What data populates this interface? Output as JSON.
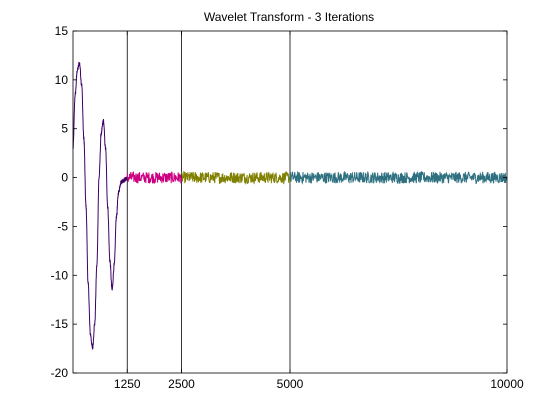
{
  "chart_data": {
    "type": "line",
    "title": "Wavelet Transform - 3 Iterations",
    "xlabel": "",
    "ylabel": "",
    "xlim": [
      0,
      10000
    ],
    "ylim": [
      -20,
      15
    ],
    "grid": false,
    "xticks": [
      1250,
      2500,
      5000,
      10000
    ],
    "yticks": [
      -20,
      -15,
      -10,
      -5,
      0,
      5,
      10,
      15
    ],
    "dividers": [
      1250,
      2500,
      5000
    ],
    "series": [
      {
        "color": "#3d0066",
        "kind": "approximation",
        "points": [
          [
            0,
            3
          ],
          [
            50,
            8.5
          ],
          [
            100,
            11
          ],
          [
            150,
            11.7
          ],
          [
            200,
            9.5
          ],
          [
            250,
            4
          ],
          [
            300,
            -3
          ],
          [
            350,
            -11
          ],
          [
            400,
            -16
          ],
          [
            450,
            -17.5
          ],
          [
            500,
            -15
          ],
          [
            550,
            -9
          ],
          [
            600,
            0
          ],
          [
            650,
            4.5
          ],
          [
            700,
            5.8
          ],
          [
            750,
            3
          ],
          [
            800,
            -3
          ],
          [
            850,
            -8.5
          ],
          [
            900,
            -11.5
          ],
          [
            950,
            -9
          ],
          [
            1000,
            -4
          ],
          [
            1050,
            -1.5
          ],
          [
            1100,
            -0.5
          ],
          [
            1150,
            -0.3
          ],
          [
            1200,
            -0.2
          ],
          [
            1250,
            0
          ]
        ]
      },
      {
        "color": "#cc0080",
        "kind": "noise",
        "x_range": [
          1250,
          2500
        ],
        "center": 0,
        "amplitude": 0.6
      },
      {
        "color": "#808000",
        "kind": "noise",
        "x_range": [
          2500,
          5000
        ],
        "center": 0,
        "amplitude": 0.6
      },
      {
        "color": "#2e7080",
        "kind": "noise",
        "x_range": [
          5000,
          10000
        ],
        "center": 0,
        "amplitude": 0.6
      }
    ]
  },
  "colors": {
    "axes": "#000000",
    "background": "#ffffff"
  }
}
